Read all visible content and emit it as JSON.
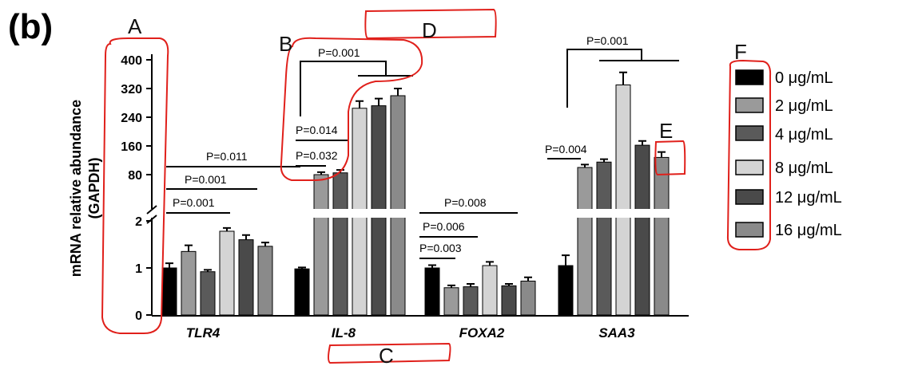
{
  "panel_label": "(b)",
  "chart_data": {
    "type": "bar",
    "ylabel": "mRNA relative abundance",
    "ylabel2": "(GAPDH)",
    "y_scale": "broken",
    "y_lower_ticks": [
      "0",
      "1",
      "2"
    ],
    "y_lower_range": [
      0,
      2
    ],
    "y_upper_ticks": [
      "80",
      "160",
      "240",
      "320",
      "400"
    ],
    "y_upper_range": [
      40,
      400
    ],
    "categories": [
      "TLR4",
      "IL-8",
      "FOXA2",
      "SAA3"
    ],
    "series": [
      {
        "name": "0 μg/mL",
        "color": "#000000",
        "values": [
          1.0,
          0.98,
          1.0,
          1.05
        ],
        "errors": [
          0.1,
          0.03,
          0.06,
          0.22
        ]
      },
      {
        "name": "2 μg/mL",
        "color": "#9a9a9a",
        "values": [
          1.35,
          80,
          0.58,
          100
        ],
        "errors": [
          0.13,
          7,
          0.05,
          8
        ]
      },
      {
        "name": "4 μg/mL",
        "color": "#5a5a5a",
        "values": [
          0.92,
          85,
          0.6,
          115
        ],
        "errors": [
          0.04,
          8,
          0.06,
          8
        ]
      },
      {
        "name": "8 μg/mL",
        "color": "#d4d4d4",
        "values": [
          1.78,
          265,
          1.05,
          330
        ],
        "errors": [
          0.07,
          20,
          0.08,
          35
        ]
      },
      {
        "name": "12 μg/mL",
        "color": "#4a4a4a",
        "values": [
          1.6,
          272,
          0.62,
          162
        ],
        "errors": [
          0.1,
          20,
          0.04,
          12
        ]
      },
      {
        "name": "16 μg/mL",
        "color": "#8a8a8a",
        "values": [
          1.46,
          300,
          0.72,
          128
        ],
        "errors": [
          0.08,
          20,
          0.08,
          15
        ]
      }
    ],
    "annotations": [
      "P=0.011",
      "P=0.001",
      "P=0.001",
      "P=0.001",
      "P=0.014",
      "P=0.032",
      "P=0.008",
      "P=0.006",
      "P=0.003",
      "P=0.001",
      "P=0.004"
    ]
  },
  "hand_labels": [
    "A",
    "B",
    "C",
    "D",
    "E",
    "F"
  ]
}
